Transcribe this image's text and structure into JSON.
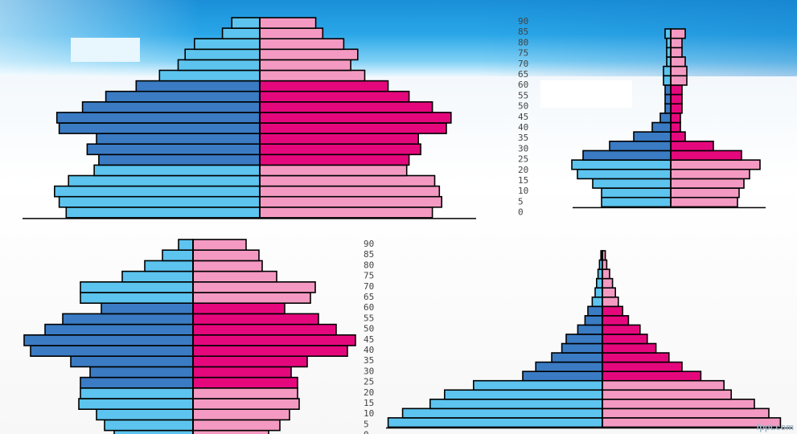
{
  "watermark": "fppt.com",
  "colors": {
    "male_dark": "#3a7bc3",
    "male_light": "#5cc4ee",
    "female_dark": "#e5087d",
    "female_light": "#f49ac2",
    "outline": "#000000"
  },
  "chart_data": [
    {
      "type": "bar",
      "id": "pyramid-top-left",
      "orientation": "horizontal-population-pyramid",
      "categories": [
        "0",
        "5",
        "10",
        "15",
        "20",
        "25",
        "30",
        "35",
        "40",
        "45",
        "50",
        "55",
        "60",
        "65",
        "70",
        "75",
        "80",
        "85",
        "90"
      ],
      "tick_labels": [],
      "series": [
        {
          "values": [
            8.3,
            8.6,
            8.8,
            8.2,
            7.1,
            6.9,
            7.4,
            7.0,
            8.6,
            8.7,
            7.6,
            6.6,
            5.3,
            4.3,
            3.5,
            3.2,
            2.8,
            1.6,
            1.2
          ]
        },
        {
          "values": [
            7.4,
            7.8,
            7.7,
            7.5,
            6.3,
            6.4,
            6.9,
            6.8,
            8.0,
            8.2,
            7.4,
            6.4,
            5.5,
            4.5,
            3.9,
            4.2,
            3.6,
            2.7,
            2.4
          ]
        }
      ],
      "title": "",
      "xlabel": "",
      "ylabel": ""
    },
    {
      "type": "bar",
      "id": "pyramid-top-right",
      "orientation": "horizontal-population-pyramid",
      "categories": [
        "0",
        "5",
        "10",
        "15",
        "20",
        "25",
        "30",
        "35",
        "40",
        "45",
        "50",
        "55",
        "60",
        "65",
        "70",
        "75",
        "80",
        "85",
        "90"
      ],
      "tick_labels": [
        "0",
        "5",
        "10",
        "15",
        "20",
        "25",
        "30",
        "35",
        "40",
        "45",
        "50",
        "55",
        "60",
        "65",
        "70",
        "75",
        "80",
        "85",
        "90"
      ],
      "series": [
        {
          "values": [
            8.6,
            8.6,
            9.7,
            11.6,
            12.3,
            10.9,
            7.6,
            4.6,
            2.3,
            1.3,
            0.7,
            0.7,
            0.7,
            0.9,
            0.9,
            0.5,
            0.5,
            0.5,
            0.7
          ]
        },
        {
          "values": [
            8.3,
            8.5,
            9.1,
            9.8,
            11.1,
            8.8,
            5.3,
            1.8,
            1.2,
            1.2,
            1.4,
            1.4,
            1.4,
            2.0,
            2.0,
            1.8,
            1.4,
            1.4,
            1.8
          ]
        }
      ],
      "title": "",
      "xlabel": "",
      "ylabel": ""
    },
    {
      "type": "bar",
      "id": "pyramid-bottom-left",
      "orientation": "horizontal-population-pyramid",
      "categories": [
        "0",
        "5",
        "10",
        "15",
        "20",
        "25",
        "30",
        "35",
        "40",
        "45",
        "50",
        "55",
        "60",
        "65",
        "70",
        "75",
        "80",
        "85",
        "90"
      ],
      "tick_labels": [
        "0",
        "5",
        "10",
        "15",
        "20",
        "25",
        "30",
        "35",
        "40",
        "45",
        "50",
        "55",
        "60",
        "65",
        "70",
        "75",
        "80",
        "85",
        "90"
      ],
      "series": [
        {
          "values": [
            4.9,
            5.5,
            6.0,
            7.1,
            7.0,
            7.0,
            6.4,
            7.6,
            10.1,
            10.5,
            9.2,
            8.1,
            5.7,
            7.0,
            7.0,
            4.4,
            3.0,
            1.9,
            0.9
          ]
        },
        {
          "values": [
            4.7,
            5.4,
            6.0,
            6.6,
            6.5,
            6.5,
            6.1,
            7.1,
            9.6,
            10.1,
            8.9,
            7.8,
            5.7,
            7.3,
            7.6,
            5.2,
            4.3,
            4.1,
            3.3
          ]
        }
      ],
      "title": "",
      "xlabel": "",
      "ylabel": ""
    },
    {
      "type": "bar",
      "id": "pyramid-bottom-right",
      "orientation": "horizontal-population-pyramid",
      "categories": [
        "0",
        "5",
        "10",
        "15",
        "20",
        "25",
        "30",
        "35",
        "40",
        "45",
        "50",
        "55",
        "60",
        "65",
        "70",
        "75",
        "80",
        "85",
        "90"
      ],
      "tick_labels": [],
      "series": [
        {
          "values": [
            14.8,
            13.8,
            11.9,
            10.9,
            8.9,
            5.5,
            4.6,
            3.5,
            2.8,
            2.5,
            1.7,
            1.2,
            1.0,
            0.7,
            0.5,
            0.4,
            0.3,
            0.2,
            0.1
          ]
        },
        {
          "values": [
            12.3,
            11.5,
            10.5,
            8.9,
            8.4,
            6.8,
            5.5,
            4.6,
            3.7,
            3.1,
            2.6,
            1.8,
            1.4,
            1.1,
            0.9,
            0.7,
            0.5,
            0.3,
            0.2
          ]
        }
      ],
      "title": "",
      "xlabel": "",
      "ylabel": ""
    }
  ]
}
